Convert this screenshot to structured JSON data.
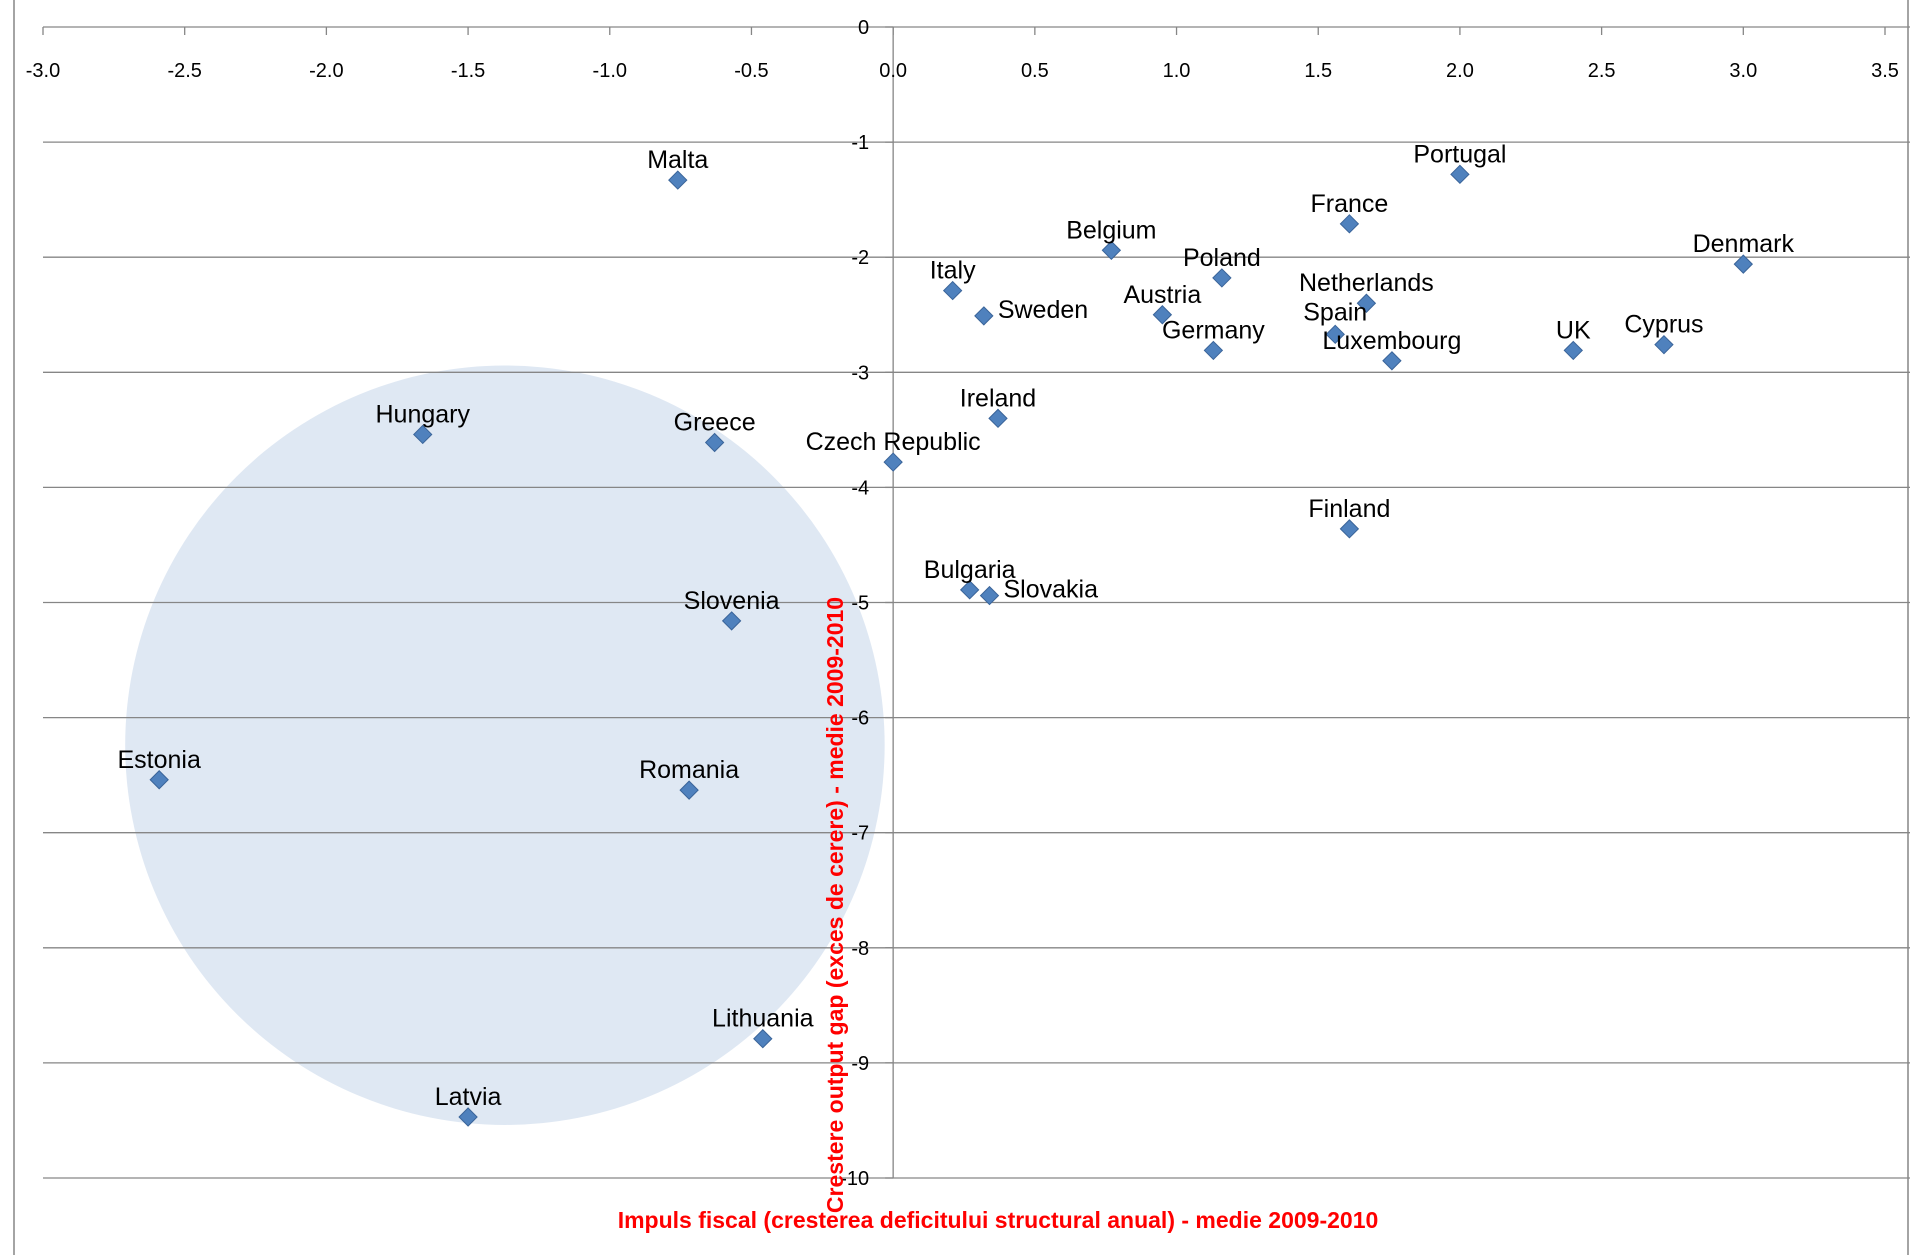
{
  "colors": {
    "marker": "#4F81BD",
    "marker_stroke": "#3A6499",
    "grid": "#868686",
    "axis_title": "#FF0000",
    "highlight_circle": "#DCE6F2"
  },
  "chart_data": {
    "type": "scatter",
    "title": "",
    "xlabel": "Impuls fiscal (cresterea deficitului structural anual) - medie 2009-2010",
    "ylabel": "Crestere output gap (exces de cerere) - medie 2009-2010",
    "xlim": [
      -3.0,
      3.5
    ],
    "ylim": [
      -10,
      0
    ],
    "x_ticks": [
      "-3.0",
      "-2.5",
      "-2.0",
      "-1.5",
      "-1.0",
      "-0.5",
      "0.0",
      "0.5",
      "1.0",
      "1.5",
      "2.0",
      "2.5",
      "3.0",
      "3.5"
    ],
    "y_ticks": [
      "0",
      "-1",
      "-2",
      "-3",
      "-4",
      "-5",
      "-6",
      "-7",
      "-8",
      "-9",
      "-10"
    ],
    "x_axis_position": "top",
    "grid": "horizontal",
    "legend": "none",
    "highlight": {
      "shape": "circle",
      "cx": -1.37,
      "cy": -6.24,
      "r": 1.34
    },
    "points": [
      {
        "label": "Malta",
        "x": -0.76,
        "y": -1.33
      },
      {
        "label": "Portugal",
        "x": 2.0,
        "y": -1.28
      },
      {
        "label": "France",
        "x": 1.61,
        "y": -1.71
      },
      {
        "label": "Belgium",
        "x": 0.77,
        "y": -1.94
      },
      {
        "label": "Denmark",
        "x": 3.0,
        "y": -2.06
      },
      {
        "label": "Poland",
        "x": 1.16,
        "y": -2.18
      },
      {
        "label": "Italy",
        "x": 0.21,
        "y": -2.29
      },
      {
        "label": "Netherlands",
        "x": 1.67,
        "y": -2.4
      },
      {
        "label": "Sweden",
        "x": 0.32,
        "y": -2.51
      },
      {
        "label": "Austria",
        "x": 0.95,
        "y": -2.5
      },
      {
        "label": "Spain",
        "x": 1.56,
        "y": -2.67
      },
      {
        "label": "Germany",
        "x": 1.13,
        "y": -2.81
      },
      {
        "label": "Luxembourg",
        "x": 1.76,
        "y": -2.9
      },
      {
        "label": "UK",
        "x": 2.4,
        "y": -2.81
      },
      {
        "label": "Cyprus",
        "x": 2.72,
        "y": -2.76
      },
      {
        "label": "Ireland",
        "x": 0.37,
        "y": -3.4
      },
      {
        "label": "Hungary",
        "x": -1.66,
        "y": -3.54
      },
      {
        "label": "Greece",
        "x": -0.63,
        "y": -3.61
      },
      {
        "label": "Czech Republic",
        "x": 0.0,
        "y": -3.78
      },
      {
        "label": "Finland",
        "x": 1.61,
        "y": -4.36
      },
      {
        "label": "Bulgaria",
        "x": 0.27,
        "y": -4.89
      },
      {
        "label": "Slovakia",
        "x": 0.34,
        "y": -4.94
      },
      {
        "label": "Slovenia",
        "x": -0.57,
        "y": -5.16
      },
      {
        "label": "Estonia",
        "x": -2.59,
        "y": -6.54
      },
      {
        "label": "Romania",
        "x": -0.72,
        "y": -6.63
      },
      {
        "label": "Lithuania",
        "x": -0.46,
        "y": -8.79
      },
      {
        "label": "Latvia",
        "x": -1.5,
        "y": -9.47
      }
    ]
  }
}
